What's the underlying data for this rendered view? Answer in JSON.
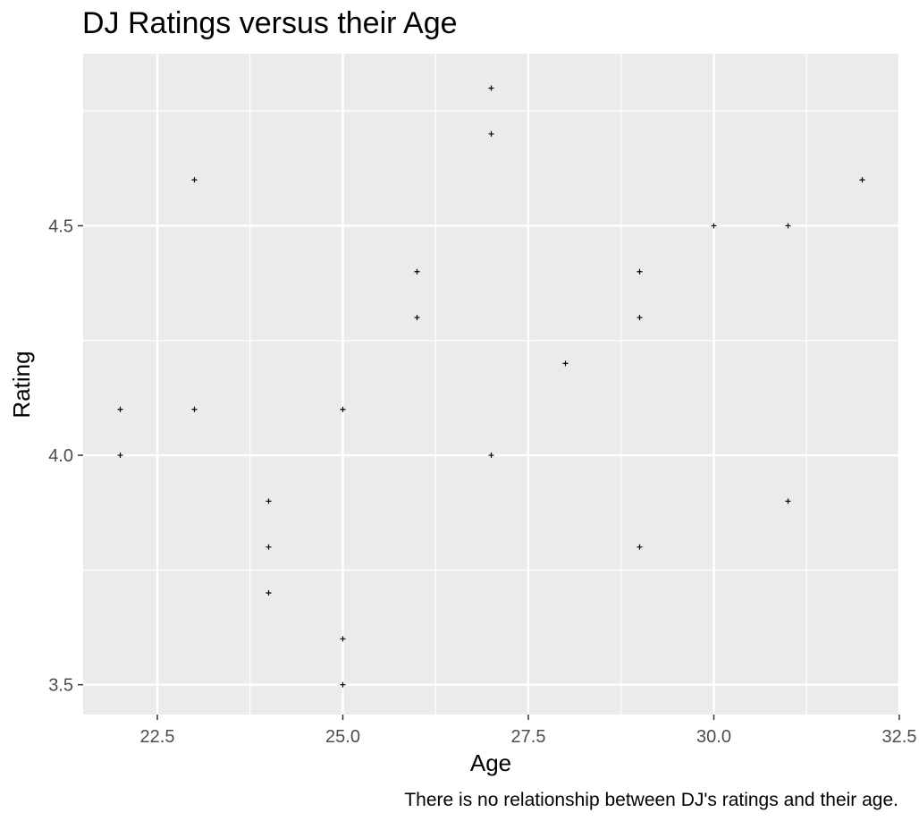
{
  "chart_data": {
    "type": "scatter",
    "title": "DJ Ratings versus their Age",
    "xlabel": "Age",
    "ylabel": "Rating",
    "caption": "There is no relationship between DJ's ratings and their age.",
    "xlim": [
      21.5,
      32.5
    ],
    "ylim": [
      3.435,
      4.875
    ],
    "xticks": [
      22.5,
      25.0,
      27.5,
      30.0,
      32.5
    ],
    "xtick_labels": [
      "22.5",
      "25.0",
      "27.5",
      "30.0",
      "32.5"
    ],
    "yticks": [
      3.5,
      4.0,
      4.5
    ],
    "ytick_labels": [
      "3.5",
      "4.0",
      "4.5"
    ],
    "grid": true,
    "marker": "+",
    "points": [
      {
        "x": 22,
        "y": 4.1
      },
      {
        "x": 22,
        "y": 4.0
      },
      {
        "x": 23,
        "y": 4.6
      },
      {
        "x": 23,
        "y": 4.1
      },
      {
        "x": 24,
        "y": 3.9
      },
      {
        "x": 24,
        "y": 3.8
      },
      {
        "x": 24,
        "y": 3.7
      },
      {
        "x": 25,
        "y": 4.1
      },
      {
        "x": 25,
        "y": 3.6
      },
      {
        "x": 25,
        "y": 3.5
      },
      {
        "x": 26,
        "y": 4.4
      },
      {
        "x": 26,
        "y": 4.3
      },
      {
        "x": 27,
        "y": 4.8
      },
      {
        "x": 27,
        "y": 4.7
      },
      {
        "x": 27,
        "y": 4.0
      },
      {
        "x": 28,
        "y": 4.2
      },
      {
        "x": 29,
        "y": 4.4
      },
      {
        "x": 29,
        "y": 4.3
      },
      {
        "x": 29,
        "y": 3.8
      },
      {
        "x": 30,
        "y": 4.5
      },
      {
        "x": 31,
        "y": 4.5
      },
      {
        "x": 31,
        "y": 3.9
      },
      {
        "x": 32,
        "y": 4.6
      }
    ],
    "colors": {
      "panel": "#ebebeb",
      "grid": "#ffffff",
      "point": "#000000"
    }
  }
}
